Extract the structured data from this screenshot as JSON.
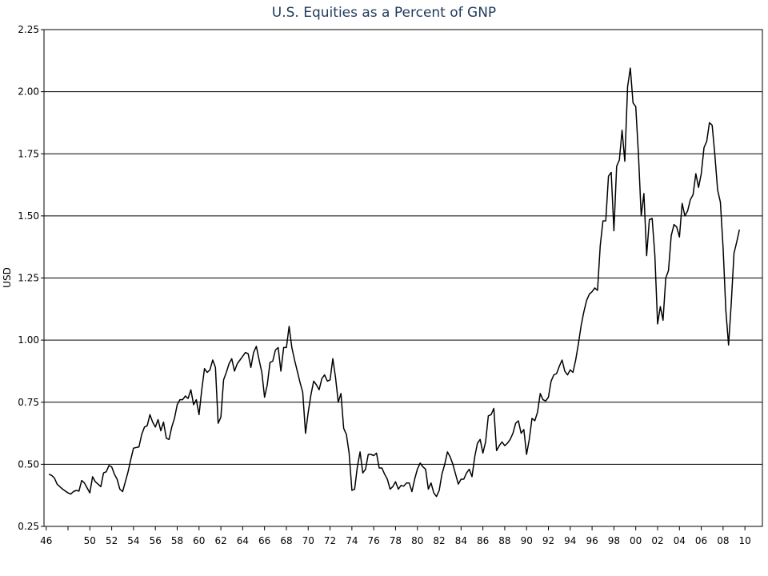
{
  "chart_data": {
    "type": "line",
    "title": "U.S. Equities as a Percent of GNP",
    "xlabel": "",
    "ylabel": "USD",
    "xlim": [
      1945.8,
      2011.6
    ],
    "ylim": [
      0.25,
      2.25
    ],
    "y_ticks": [
      "0.25",
      "0.50",
      "0.75",
      "1.00",
      "1.25",
      "1.50",
      "1.75",
      "2.00",
      "2.25"
    ],
    "x_tick_labels": [
      "46",
      "50",
      "52",
      "54",
      "56",
      "58",
      "60",
      "62",
      "64",
      "66",
      "68",
      "70",
      "72",
      "74",
      "76",
      "78",
      "80",
      "82",
      "84",
      "86",
      "88",
      "90",
      "92",
      "94",
      "96",
      "98",
      "00",
      "02",
      "04",
      "06",
      "08",
      "10"
    ],
    "grid": "horizontal",
    "legend": "none",
    "series": [
      {
        "name": "",
        "color": "#000000",
        "points": [
          [
            1946.25,
            0.46
          ],
          [
            1946.5,
            0.455
          ],
          [
            1946.75,
            0.445
          ],
          [
            1947.0,
            0.42
          ],
          [
            1947.5,
            0.4
          ],
          [
            1948.0,
            0.385
          ],
          [
            1948.25,
            0.38
          ],
          [
            1948.5,
            0.39
          ],
          [
            1948.75,
            0.395
          ],
          [
            1949.0,
            0.392
          ],
          [
            1949.25,
            0.435
          ],
          [
            1949.5,
            0.425
          ],
          [
            1949.75,
            0.405
          ],
          [
            1950.0,
            0.385
          ],
          [
            1950.25,
            0.45
          ],
          [
            1950.5,
            0.43
          ],
          [
            1950.75,
            0.42
          ],
          [
            1951.0,
            0.41
          ],
          [
            1951.25,
            0.465
          ],
          [
            1951.5,
            0.47
          ],
          [
            1951.75,
            0.495
          ],
          [
            1952.0,
            0.49
          ],
          [
            1952.25,
            0.46
          ],
          [
            1952.5,
            0.44
          ],
          [
            1952.75,
            0.4
          ],
          [
            1953.0,
            0.39
          ],
          [
            1953.25,
            0.43
          ],
          [
            1953.5,
            0.47
          ],
          [
            1953.75,
            0.52
          ],
          [
            1954.0,
            0.565
          ],
          [
            1954.5,
            0.57
          ],
          [
            1954.75,
            0.62
          ],
          [
            1955.0,
            0.65
          ],
          [
            1955.25,
            0.655
          ],
          [
            1955.5,
            0.7
          ],
          [
            1955.75,
            0.67
          ],
          [
            1956.0,
            0.65
          ],
          [
            1956.25,
            0.68
          ],
          [
            1956.5,
            0.635
          ],
          [
            1956.75,
            0.67
          ],
          [
            1957.0,
            0.605
          ],
          [
            1957.25,
            0.6
          ],
          [
            1957.5,
            0.65
          ],
          [
            1957.75,
            0.685
          ],
          [
            1958.0,
            0.74
          ],
          [
            1958.25,
            0.76
          ],
          [
            1958.5,
            0.76
          ],
          [
            1958.75,
            0.775
          ],
          [
            1959.0,
            0.765
          ],
          [
            1959.25,
            0.8
          ],
          [
            1959.5,
            0.74
          ],
          [
            1959.75,
            0.76
          ],
          [
            1960.0,
            0.7
          ],
          [
            1960.25,
            0.8
          ],
          [
            1960.5,
            0.885
          ],
          [
            1960.75,
            0.87
          ],
          [
            1961.0,
            0.88
          ],
          [
            1961.25,
            0.92
          ],
          [
            1961.5,
            0.89
          ],
          [
            1961.75,
            0.665
          ],
          [
            1962.0,
            0.69
          ],
          [
            1962.25,
            0.84
          ],
          [
            1962.5,
            0.87
          ],
          [
            1962.75,
            0.905
          ],
          [
            1963.0,
            0.925
          ],
          [
            1963.25,
            0.875
          ],
          [
            1963.5,
            0.905
          ],
          [
            1963.75,
            0.92
          ],
          [
            1964.0,
            0.935
          ],
          [
            1964.25,
            0.95
          ],
          [
            1964.5,
            0.945
          ],
          [
            1964.75,
            0.89
          ],
          [
            1965.0,
            0.95
          ],
          [
            1965.25,
            0.975
          ],
          [
            1965.5,
            0.92
          ],
          [
            1965.75,
            0.87
          ],
          [
            1966.0,
            0.77
          ],
          [
            1966.25,
            0.82
          ],
          [
            1966.5,
            0.91
          ],
          [
            1966.75,
            0.915
          ],
          [
            1967.0,
            0.96
          ],
          [
            1967.25,
            0.97
          ],
          [
            1967.5,
            0.875
          ],
          [
            1967.75,
            0.97
          ],
          [
            1968.0,
            0.97
          ],
          [
            1968.25,
            1.055
          ],
          [
            1968.5,
            0.97
          ],
          [
            1968.75,
            0.92
          ],
          [
            1969.0,
            0.875
          ],
          [
            1969.25,
            0.83
          ],
          [
            1969.5,
            0.79
          ],
          [
            1969.75,
            0.625
          ],
          [
            1970.0,
            0.71
          ],
          [
            1970.25,
            0.78
          ],
          [
            1970.5,
            0.835
          ],
          [
            1970.75,
            0.82
          ],
          [
            1971.0,
            0.8
          ],
          [
            1971.25,
            0.845
          ],
          [
            1971.5,
            0.86
          ],
          [
            1971.75,
            0.835
          ],
          [
            1972.0,
            0.84
          ],
          [
            1972.25,
            0.925
          ],
          [
            1972.5,
            0.85
          ],
          [
            1972.75,
            0.75
          ],
          [
            1973.0,
            0.785
          ],
          [
            1973.25,
            0.645
          ],
          [
            1973.5,
            0.62
          ],
          [
            1973.75,
            0.545
          ],
          [
            1974.0,
            0.395
          ],
          [
            1974.25,
            0.4
          ],
          [
            1974.5,
            0.49
          ],
          [
            1974.75,
            0.55
          ],
          [
            1975.0,
            0.465
          ],
          [
            1975.25,
            0.48
          ],
          [
            1975.5,
            0.54
          ],
          [
            1975.75,
            0.54
          ],
          [
            1976.0,
            0.535
          ],
          [
            1976.25,
            0.545
          ],
          [
            1976.5,
            0.485
          ],
          [
            1976.75,
            0.485
          ],
          [
            1977.0,
            0.46
          ],
          [
            1977.25,
            0.44
          ],
          [
            1977.5,
            0.4
          ],
          [
            1977.75,
            0.41
          ],
          [
            1978.0,
            0.43
          ],
          [
            1978.25,
            0.4
          ],
          [
            1978.5,
            0.415
          ],
          [
            1978.75,
            0.412
          ],
          [
            1979.0,
            0.425
          ],
          [
            1979.25,
            0.425
          ],
          [
            1979.5,
            0.39
          ],
          [
            1979.75,
            0.44
          ],
          [
            1980.0,
            0.48
          ],
          [
            1980.25,
            0.505
          ],
          [
            1980.5,
            0.49
          ],
          [
            1980.75,
            0.48
          ],
          [
            1981.0,
            0.4
          ],
          [
            1981.25,
            0.425
          ],
          [
            1981.5,
            0.385
          ],
          [
            1981.75,
            0.37
          ],
          [
            1982.0,
            0.395
          ],
          [
            1982.25,
            0.46
          ],
          [
            1982.5,
            0.5
          ],
          [
            1982.75,
            0.55
          ],
          [
            1983.0,
            0.53
          ],
          [
            1983.25,
            0.5
          ],
          [
            1983.5,
            0.46
          ],
          [
            1983.75,
            0.42
          ],
          [
            1984.0,
            0.44
          ],
          [
            1984.25,
            0.44
          ],
          [
            1984.5,
            0.465
          ],
          [
            1984.75,
            0.48
          ],
          [
            1985.0,
            0.45
          ],
          [
            1985.25,
            0.53
          ],
          [
            1985.5,
            0.585
          ],
          [
            1985.75,
            0.6
          ],
          [
            1986.0,
            0.545
          ],
          [
            1986.25,
            0.59
          ],
          [
            1986.5,
            0.695
          ],
          [
            1986.75,
            0.7
          ],
          [
            1987.0,
            0.725
          ],
          [
            1987.25,
            0.555
          ],
          [
            1987.5,
            0.575
          ],
          [
            1987.75,
            0.59
          ],
          [
            1988.0,
            0.575
          ],
          [
            1988.25,
            0.585
          ],
          [
            1988.5,
            0.6
          ],
          [
            1988.75,
            0.625
          ],
          [
            1989.0,
            0.665
          ],
          [
            1989.25,
            0.675
          ],
          [
            1989.5,
            0.625
          ],
          [
            1989.75,
            0.64
          ],
          [
            1990.0,
            0.54
          ],
          [
            1990.25,
            0.6
          ],
          [
            1990.5,
            0.685
          ],
          [
            1990.75,
            0.675
          ],
          [
            1991.0,
            0.71
          ],
          [
            1991.25,
            0.785
          ],
          [
            1991.5,
            0.76
          ],
          [
            1991.75,
            0.755
          ],
          [
            1992.0,
            0.77
          ],
          [
            1992.25,
            0.835
          ],
          [
            1992.5,
            0.86
          ],
          [
            1992.75,
            0.865
          ],
          [
            1993.0,
            0.895
          ],
          [
            1993.25,
            0.92
          ],
          [
            1993.5,
            0.875
          ],
          [
            1993.75,
            0.86
          ],
          [
            1994.0,
            0.88
          ],
          [
            1994.25,
            0.87
          ],
          [
            1994.5,
            0.92
          ],
          [
            1994.75,
            0.985
          ],
          [
            1995.0,
            1.06
          ],
          [
            1995.25,
            1.115
          ],
          [
            1995.5,
            1.16
          ],
          [
            1995.75,
            1.185
          ],
          [
            1996.0,
            1.195
          ],
          [
            1996.25,
            1.21
          ],
          [
            1996.5,
            1.2
          ],
          [
            1996.75,
            1.38
          ],
          [
            1997.0,
            1.48
          ],
          [
            1997.25,
            1.48
          ],
          [
            1997.5,
            1.66
          ],
          [
            1997.75,
            1.675
          ],
          [
            1998.0,
            1.44
          ],
          [
            1998.25,
            1.7
          ],
          [
            1998.5,
            1.725
          ],
          [
            1998.75,
            1.845
          ],
          [
            1999.0,
            1.72
          ],
          [
            1999.25,
            2.02
          ],
          [
            1999.5,
            2.095
          ],
          [
            1999.75,
            1.955
          ],
          [
            2000.0,
            1.94
          ],
          [
            2000.25,
            1.745
          ],
          [
            2000.5,
            1.5
          ],
          [
            2000.75,
            1.59
          ],
          [
            2001.0,
            1.34
          ],
          [
            2001.25,
            1.485
          ],
          [
            2001.5,
            1.49
          ],
          [
            2001.75,
            1.34
          ],
          [
            2002.0,
            1.065
          ],
          [
            2002.25,
            1.135
          ],
          [
            2002.5,
            1.08
          ],
          [
            2002.75,
            1.25
          ],
          [
            2003.0,
            1.28
          ],
          [
            2003.25,
            1.42
          ],
          [
            2003.5,
            1.465
          ],
          [
            2003.75,
            1.455
          ],
          [
            2004.0,
            1.415
          ],
          [
            2004.25,
            1.55
          ],
          [
            2004.5,
            1.5
          ],
          [
            2004.75,
            1.52
          ],
          [
            2005.0,
            1.565
          ],
          [
            2005.25,
            1.585
          ],
          [
            2005.5,
            1.67
          ],
          [
            2005.75,
            1.615
          ],
          [
            2006.0,
            1.67
          ],
          [
            2006.25,
            1.775
          ],
          [
            2006.5,
            1.8
          ],
          [
            2006.75,
            1.875
          ],
          [
            2007.0,
            1.865
          ],
          [
            2007.25,
            1.745
          ],
          [
            2007.5,
            1.605
          ],
          [
            2007.75,
            1.555
          ],
          [
            2008.0,
            1.37
          ],
          [
            2008.25,
            1.12
          ],
          [
            2008.5,
            0.98
          ],
          [
            2008.75,
            1.15
          ],
          [
            2009.0,
            1.35
          ],
          [
            2009.25,
            1.395
          ],
          [
            2009.5,
            1.445
          ]
        ]
      }
    ]
  }
}
